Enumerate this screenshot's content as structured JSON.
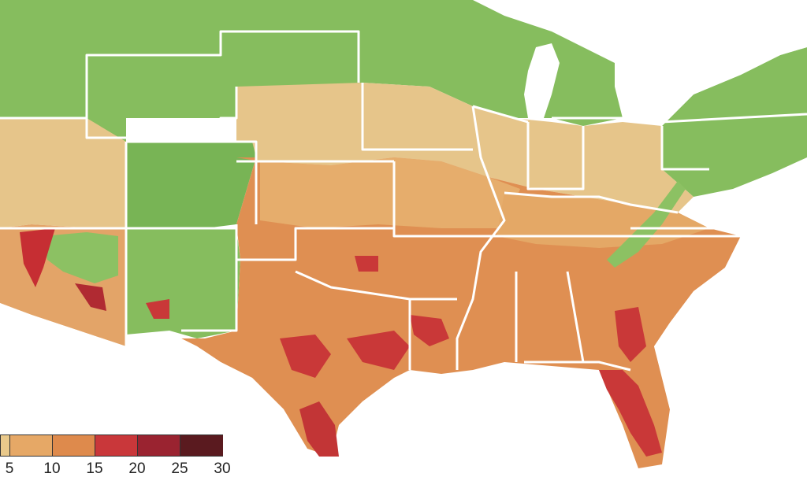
{
  "map": {
    "legend": {
      "ticks": [
        "5",
        "10",
        "15",
        "20",
        "25",
        "30"
      ],
      "colors": [
        "#e9c98b",
        "#e6a866",
        "#de8a4c",
        "#c9373a",
        "#9a2330",
        "#5a1a1f"
      ]
    },
    "palette": {
      "green_light": "#8cc163",
      "green_mid": "#6fb152",
      "green_dark": "#3f9a45",
      "tan": "#e8c98a",
      "orange_light": "#e6ad6c",
      "orange": "#de8b4f",
      "red": "#c93838",
      "dark_red": "#8a1f2b",
      "water": "#ffffff",
      "state_border": "#ffffff"
    }
  }
}
